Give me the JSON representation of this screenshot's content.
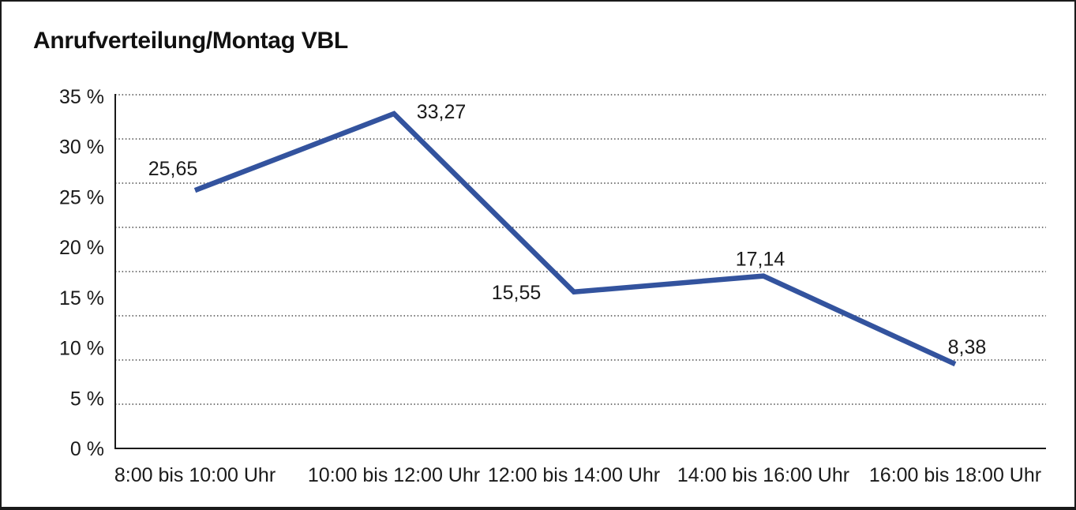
{
  "title": "Anrufverteilung/Montag VBL",
  "chart_data": {
    "type": "line",
    "title": "Anrufverteilung/Montag VBL",
    "categories": [
      "8:00 bis 10:00 Uhr",
      "10:00 bis 12:00 Uhr",
      "12:00 bis 14:00 Uhr",
      "14:00 bis 16:00 Uhr",
      "16:00 bis 18:00 Uhr"
    ],
    "values": [
      25.65,
      33.27,
      15.55,
      17.14,
      8.38
    ],
    "point_labels": [
      "25,65",
      "33,27",
      "15,55",
      "17,14",
      "8,38"
    ],
    "y_tick_labels": [
      "35 %",
      "30 %",
      "25 %",
      "20 %",
      "15 %",
      "10 %",
      "5 %",
      "0 %"
    ],
    "ylim": [
      0,
      35
    ],
    "xlabel": "",
    "ylabel": "",
    "legend": "none",
    "grid": "horizontal-dotted",
    "line_color": "#33539E",
    "text_color": "#1a1a1a",
    "axis_color": "#1a1a1a",
    "gridline_color": "#4a4a4a",
    "background_color": "#ffffff"
  }
}
